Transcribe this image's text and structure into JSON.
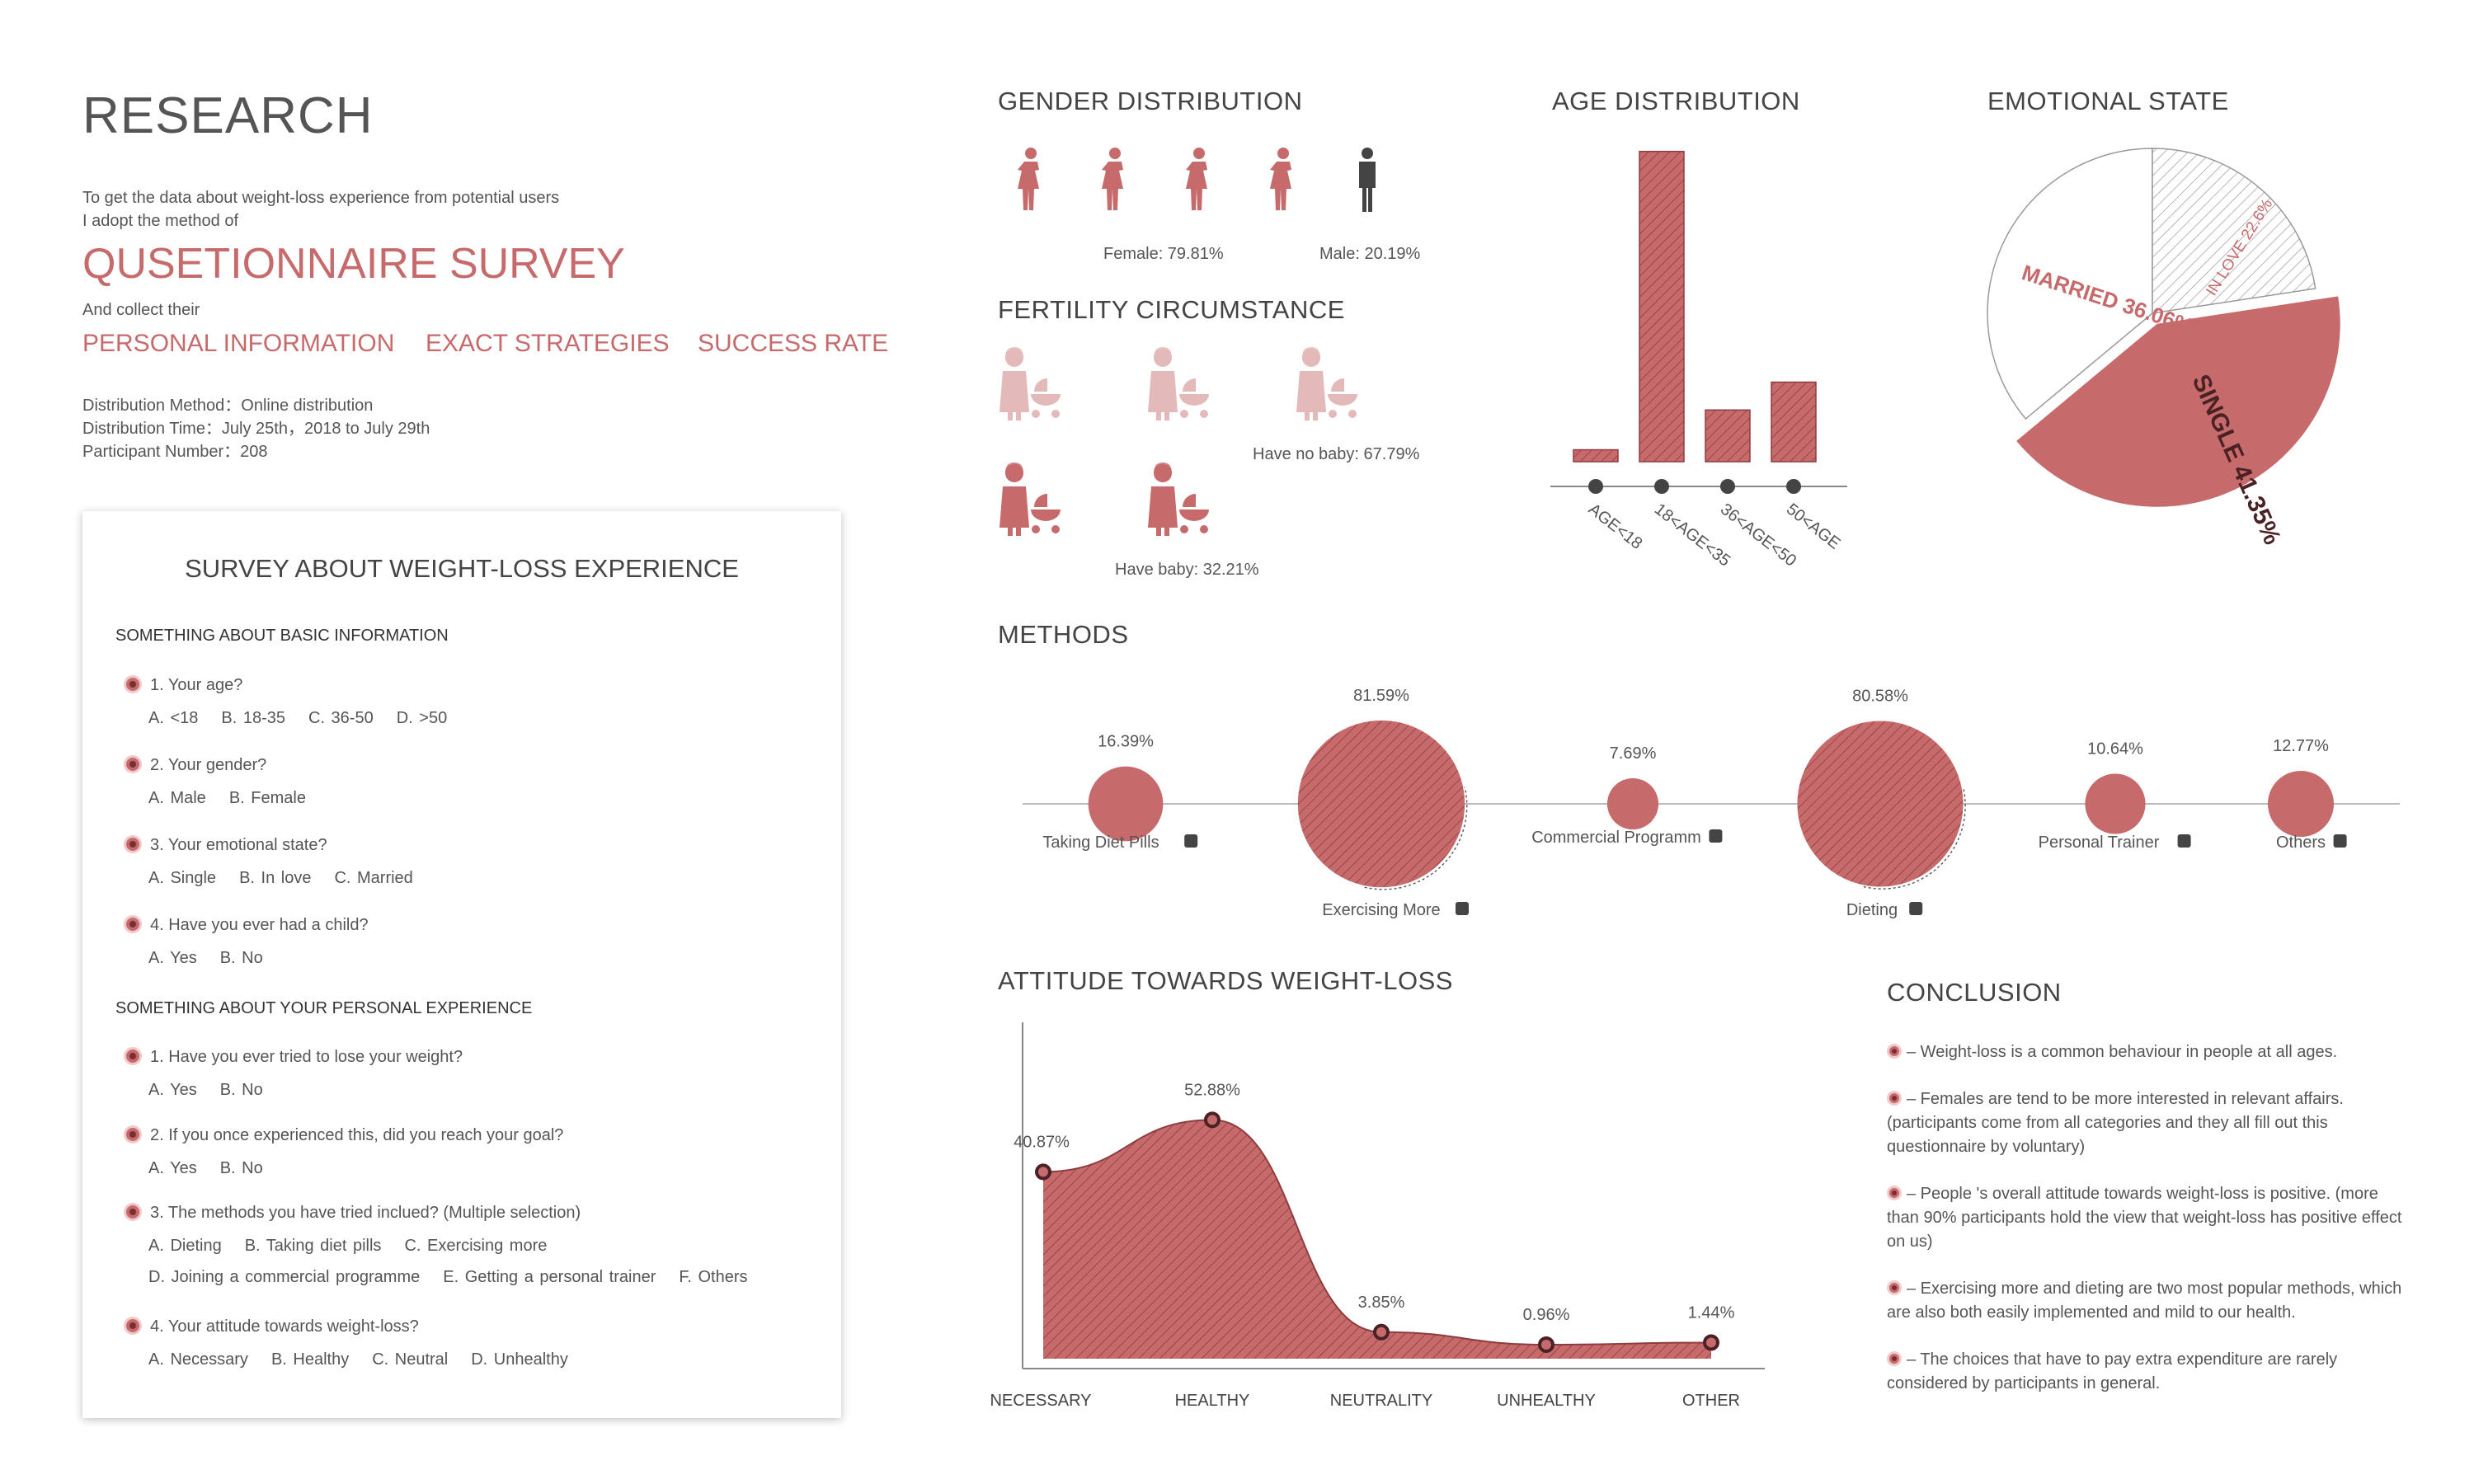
{
  "research": {
    "title": "RESEARCH",
    "intro_line1": "To get the data about weight-loss experience from potential users",
    "intro_line2": "I adopt the method of",
    "method": "QUSETIONNAIRE SURVEY",
    "collect": "And collect their",
    "items": [
      "PERSONAL INFORMATION",
      "EXACT STRATEGIES",
      "SUCCESS RATE"
    ],
    "distribution_method": "Distribution Method：Online distribution",
    "distribution_time": "Distribution Time：July 25th，2018 to July 29th",
    "participant_number": "Participant Number：208"
  },
  "survey": {
    "title": "SURVEY ABOUT WEIGHT-LOSS EXPERIENCE",
    "section1": "SOMETHING ABOUT BASIC INFORMATION",
    "section2": "SOMETHING ABOUT YOUR PERSONAL EXPERIENCE",
    "basic": [
      {
        "q": "1. Your age?",
        "options": [
          "A. <18",
          "B. 18-35",
          "C. 36-50",
          "D. >50"
        ]
      },
      {
        "q": "2. Your gender?",
        "options": [
          "A. Male",
          "B. Female"
        ]
      },
      {
        "q": "3. Your emotional state?",
        "options": [
          "A. Single",
          "B. In love",
          "C. Married"
        ]
      },
      {
        "q": "4. Have you ever had a child?",
        "options": [
          "A. Yes",
          "B. No"
        ]
      }
    ],
    "personal": [
      {
        "q": "1. Have you ever tried to lose your weight?",
        "options": [
          "A. Yes",
          "B. No"
        ]
      },
      {
        "q": "2. If you once experienced this, did you reach your goal?",
        "options": [
          "A. Yes",
          "B. No"
        ]
      },
      {
        "q": "3. The methods you have tried inclued? (Multiple selection)",
        "options": [
          "A. Dieting",
          "B. Taking diet pills",
          "C. Exercising more"
        ],
        "options2": [
          "D. Joining a commercial programme",
          "E. Getting a personal trainer",
          "F. Others"
        ]
      },
      {
        "q": "4. Your attitude towards weight-loss?",
        "options": [
          "A. Necessary",
          "B. Healthy",
          "C. Neutral",
          "D. Unhealthy"
        ]
      }
    ]
  },
  "gender": {
    "title": "GENDER DISTRIBUTION",
    "female_label": "Female: 79.81%",
    "male_label": "Male: 20.19%"
  },
  "fertility": {
    "title": "FERTILITY CIRCUMSTANCE",
    "no_baby_label": "Have no baby: 67.79%",
    "baby_label": "Have baby: 32.21%"
  },
  "age": {
    "title": "AGE DISTRIBUTION"
  },
  "emotional": {
    "title": "EMOTIONAL STATE",
    "married_label": "MARRIED 36.06%",
    "inlove_label": "IN LOVE 22.6%",
    "single_label": "SINGLE 41.35%"
  },
  "methods": {
    "title": "METHODS",
    "items": [
      {
        "label": "Taking Diet Pills",
        "pct": "16.39%",
        "icon": "pill-icon"
      },
      {
        "label": "Exercising More",
        "pct": "81.59%",
        "icon": "sneaker-icon"
      },
      {
        "label": "Commercial Programm",
        "pct": "7.69%",
        "icon": "building-icon"
      },
      {
        "label": "Dieting",
        "pct": "80.58%",
        "icon": "cutlery-icon"
      },
      {
        "label": "Personal Trainer",
        "pct": "10.64%",
        "icon": "trainer-icon"
      },
      {
        "label": "Others",
        "pct": "12.77%",
        "icon": "map-icon"
      }
    ]
  },
  "attitude": {
    "title": "ATTITUDE TOWARDS WEIGHT-LOSS"
  },
  "conclusion": {
    "title": "CONCLUSION",
    "items": [
      "– Weight-loss is a common behaviour in people at all ages.",
      "– Females are tend to be more interested in relevant affairs. (participants come from all categories and they all fill out this questionnaire by voluntary)",
      "– People 's overall attitude towards weight-loss is positive. (more than 90% participants hold the view that weight-loss has positive effect on us)",
      "– Exercising more and dieting are two most popular methods, which are also both easily implemented and mild to our health.",
      "– The choices that have to pay extra expenditure are  rarely considered by participants in general."
    ]
  },
  "colors": {
    "accent": "#c76a6c",
    "dark": "#444444",
    "light_accent": "#e8c3c4"
  },
  "chart_data": [
    {
      "type": "pie",
      "title": "GENDER DISTRIBUTION",
      "categories": [
        "Female",
        "Male"
      ],
      "values": [
        79.81,
        20.19
      ]
    },
    {
      "type": "pie",
      "title": "FERTILITY CIRCUMSTANCE",
      "categories": [
        "Have no baby",
        "Have baby"
      ],
      "values": [
        67.79,
        32.21
      ]
    },
    {
      "type": "bar",
      "title": "AGE DISTRIBUTION",
      "categories": [
        "AGE<18",
        "18<AGE<35",
        "36<AGE<50",
        "50<AGE"
      ],
      "values": [
        3,
        78,
        13,
        20
      ],
      "ylim": [
        0,
        80
      ]
    },
    {
      "type": "pie",
      "title": "EMOTIONAL STATE",
      "categories": [
        "SINGLE",
        "IN LOVE",
        "MARRIED"
      ],
      "values": [
        41.35,
        22.6,
        36.06
      ]
    },
    {
      "type": "scatter",
      "title": "METHODS",
      "categories": [
        "Taking Diet Pills",
        "Exercising More",
        "Commercial Programm",
        "Dieting",
        "Personal Trainer",
        "Others"
      ],
      "values": [
        16.39,
        81.59,
        7.69,
        80.58,
        10.64,
        12.77
      ]
    },
    {
      "type": "area",
      "title": "ATTITUDE TOWARDS WEIGHT-LOSS",
      "categories": [
        "NECESSARY",
        "HEALTHY",
        "NEUTRALITY",
        "UNHEALTHY",
        "OTHER"
      ],
      "values": [
        40.87,
        52.88,
        3.85,
        0.96,
        1.44
      ],
      "value_labels": [
        "40.87%",
        "52.88%",
        "3.85%",
        "0.96%",
        "1.44%"
      ],
      "ylim": [
        0,
        55
      ]
    }
  ]
}
